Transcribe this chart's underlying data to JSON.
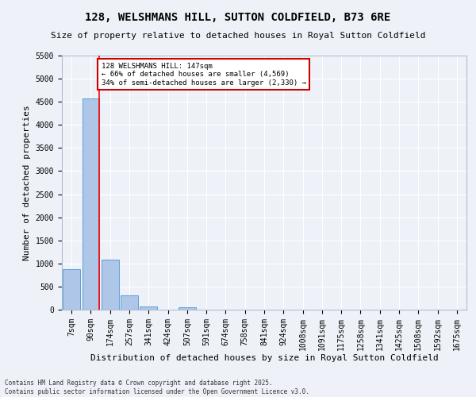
{
  "title": "128, WELSHMANS HILL, SUTTON COLDFIELD, B73 6RE",
  "subtitle": "Size of property relative to detached houses in Royal Sutton Coldfield",
  "xlabel": "Distribution of detached houses by size in Royal Sutton Coldfield",
  "ylabel": "Number of detached properties",
  "footer_line1": "Contains HM Land Registry data © Crown copyright and database right 2025.",
  "footer_line2": "Contains public sector information licensed under the Open Government Licence v3.0.",
  "bins": [
    "7sqm",
    "90sqm",
    "174sqm",
    "257sqm",
    "341sqm",
    "424sqm",
    "507sqm",
    "591sqm",
    "674sqm",
    "758sqm",
    "841sqm",
    "924sqm",
    "1008sqm",
    "1091sqm",
    "1175sqm",
    "1258sqm",
    "1341sqm",
    "1425sqm",
    "1508sqm",
    "1592sqm",
    "1675sqm"
  ],
  "values": [
    880,
    4570,
    1080,
    310,
    65,
    0,
    45,
    0,
    0,
    0,
    0,
    0,
    0,
    0,
    0,
    0,
    0,
    0,
    0,
    0,
    0
  ],
  "bar_color": "#aec6e8",
  "bar_edge_color": "#5a9fd4",
  "annotation_title": "128 WELSHMANS HILL: 147sqm",
  "annotation_line1": "← 66% of detached houses are smaller (4,569)",
  "annotation_line2": "34% of semi-detached houses are larger (2,330) →",
  "annotation_box_color": "#ffffff",
  "annotation_box_edge": "#cc0000",
  "red_line_x": 1.45,
  "ylim": [
    0,
    5500
  ],
  "yticks": [
    0,
    500,
    1000,
    1500,
    2000,
    2500,
    3000,
    3500,
    4000,
    4500,
    5000,
    5500
  ],
  "background_color": "#eef2f8",
  "grid_color": "#ffffff",
  "title_fontsize": 10,
  "subtitle_fontsize": 8,
  "ylabel_fontsize": 8,
  "xlabel_fontsize": 8,
  "tick_fontsize": 7,
  "footer_fontsize": 5.5
}
